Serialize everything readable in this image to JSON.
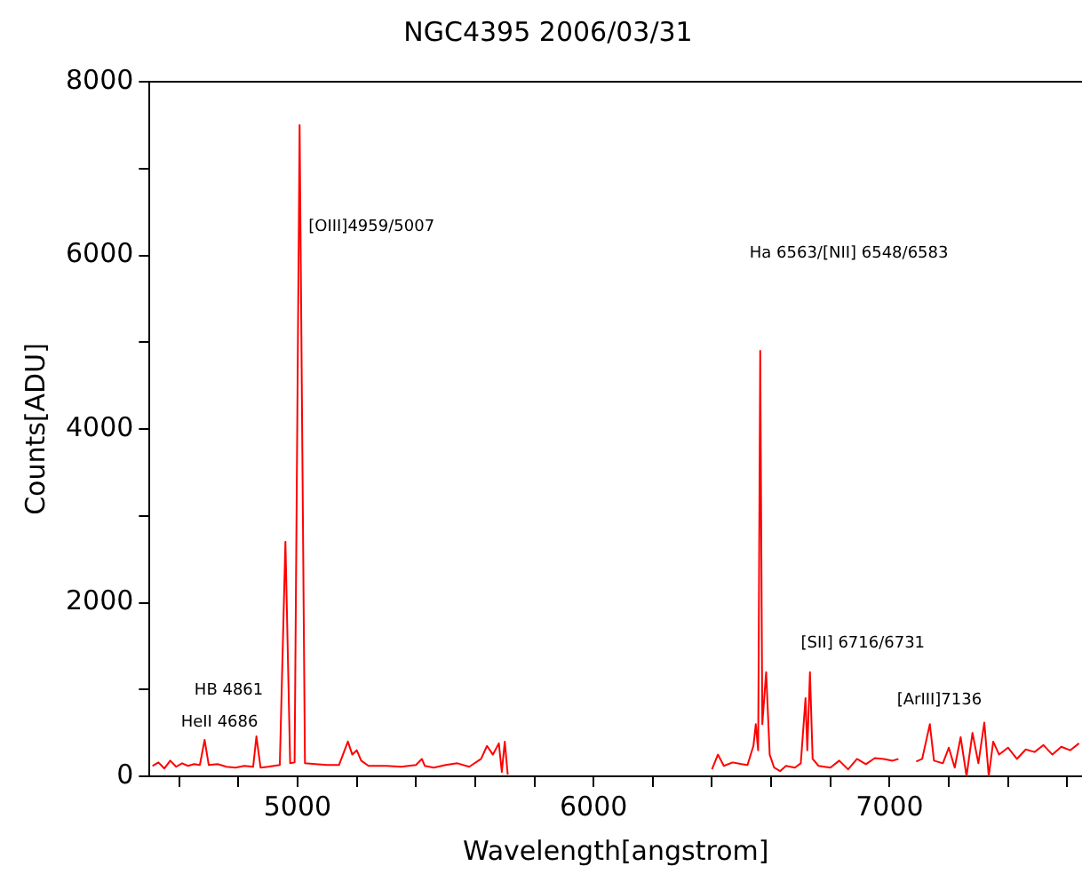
{
  "chart_data": {
    "type": "line",
    "title": "NGC4395 2006/03/31",
    "xlabel": "Wavelength[angstrom]",
    "ylabel": "Counts[ADU]",
    "xlim": [
      4500,
      7650
    ],
    "ylim": [
      0,
      8000
    ],
    "xticks": [
      {
        "value": 4600,
        "label": null
      },
      {
        "value": 4800,
        "label": null
      },
      5000,
      {
        "value": 5200,
        "label": null
      },
      {
        "value": 5400,
        "label": null
      },
      {
        "value": 5600,
        "label": null
      },
      {
        "value": 5800,
        "label": null
      },
      6000,
      {
        "value": 6200,
        "label": null
      },
      {
        "value": 6400,
        "label": null
      },
      {
        "value": 6600,
        "label": null
      },
      {
        "value": 6800,
        "label": null
      },
      7000,
      {
        "value": 7200,
        "label": null
      },
      {
        "value": 7400,
        "label": null
      },
      {
        "value": 7600,
        "label": null
      }
    ],
    "yticks": [
      0,
      {
        "value": 1000,
        "label": null
      },
      2000,
      {
        "value": 3000,
        "label": null
      },
      4000,
      {
        "value": 5000,
        "label": null
      },
      6000,
      {
        "value": 7000,
        "label": null
      },
      8000
    ],
    "grid": false,
    "legend": false,
    "marker": "none",
    "line_style": "solid",
    "series": [
      {
        "color": "#ff0000",
        "x": [
          4510,
          4530,
          4550,
          4570,
          4590,
          4610,
          4630,
          4650,
          4670,
          4686,
          4700,
          4730,
          4760,
          4790,
          4820,
          4850,
          4861,
          4875,
          4900,
          4940,
          4959,
          4975,
          4990,
          5007,
          5025,
          5060,
          5100,
          5140,
          5170,
          5185,
          5200,
          5215,
          5240,
          5300,
          5350,
          5400,
          5420,
          5430,
          5460,
          5500,
          5540,
          5580,
          5620,
          5640,
          5660,
          5680,
          5690,
          5700,
          5710,
          5720,
          6400,
          6420,
          6440,
          6470,
          6500,
          6520,
          6540,
          6548,
          6556,
          6563,
          6570,
          6583,
          6595,
          6610,
          6630,
          6650,
          6680,
          6700,
          6716,
          6722,
          6731,
          6740,
          6760,
          6800,
          6830,
          6860,
          6890,
          6920,
          6950,
          6980,
          7010,
          7030,
          7040,
          7090,
          7110,
          7136,
          7150,
          7180,
          7200,
          7220,
          7240,
          7260,
          7280,
          7300,
          7320,
          7335,
          7350,
          7370,
          7400,
          7430,
          7460,
          7490,
          7520,
          7550,
          7580,
          7610,
          7640
        ],
        "values": [
          120,
          160,
          90,
          180,
          110,
          150,
          120,
          140,
          130,
          420,
          130,
          140,
          110,
          100,
          120,
          110,
          460,
          100,
          110,
          130,
          2700,
          150,
          160,
          7500,
          150,
          140,
          130,
          130,
          400,
          250,
          300,
          180,
          120,
          120,
          110,
          130,
          200,
          120,
          100,
          130,
          150,
          110,
          200,
          350,
          250,
          380,
          50,
          400,
          20,
          null,
          80,
          250,
          120,
          160,
          140,
          130,
          350,
          600,
          300,
          4900,
          600,
          1200,
          250,
          100,
          60,
          120,
          100,
          150,
          900,
          300,
          1200,
          200,
          120,
          100,
          180,
          80,
          200,
          140,
          210,
          200,
          180,
          200,
          null,
          170,
          200,
          600,
          180,
          150,
          330,
          100,
          450,
          0,
          500,
          150,
          620,
          0,
          400,
          250,
          330,
          200,
          310,
          280,
          360,
          250,
          340,
          300,
          380
        ]
      }
    ],
    "annotations": [
      "[OIII]4959/5007",
      "Ha 6563/[NII] 6548/6583",
      "HB 4861",
      "HeII 4686",
      "[SII] 6716/6731",
      "[ArIII]7136"
    ]
  }
}
